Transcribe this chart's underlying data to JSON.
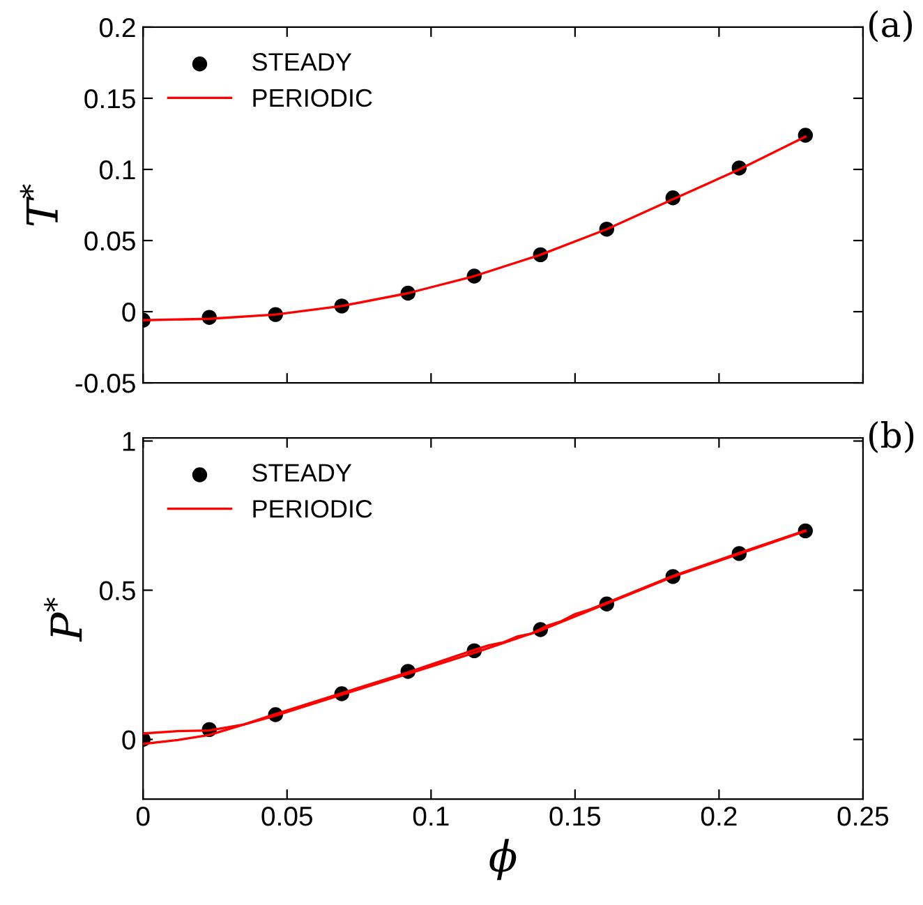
{
  "chart_data": [
    {
      "type": "line",
      "ylabel": "T$^{*}$",
      "annotations": [
        "(a)"
      ],
      "xlim": [
        0,
        0.25
      ],
      "xticks": [
        0,
        0.05,
        0.1,
        0.15,
        0.2,
        0.25
      ],
      "ylim": [
        -0.05,
        0.2
      ],
      "yticks": [
        -0.05,
        0,
        0.05,
        0.1,
        0.15,
        0.2
      ],
      "tick_labels": "y",
      "grid": false,
      "legend": "top left",
      "series": [
        {
          "name": "STEADY",
          "type": "scatter",
          "color": "#000000",
          "marker": "circle",
          "x": [
            0,
            0.023,
            0.046,
            0.069,
            0.092,
            0.115,
            0.138,
            0.161,
            0.184,
            0.207,
            0.23
          ],
          "values": [
            -0.006,
            -0.004,
            -0.002,
            0.004,
            0.013,
            0.025,
            0.04,
            0.058,
            0.08,
            0.101,
            0.124
          ]
        },
        {
          "name": "PERIODIC",
          "color": "#ff0000",
          "line_style": "solid",
          "x": [
            0,
            0.023,
            0.046,
            0.069,
            0.092,
            0.115,
            0.138,
            0.161,
            0.184,
            0.207,
            0.23
          ],
          "values": [
            -0.006,
            -0.005,
            -0.002,
            0.004,
            0.013,
            0.025,
            0.04,
            0.058,
            0.079,
            0.1,
            0.123
          ]
        }
      ]
    },
    {
      "type": "line",
      "ylabel": "P$^{*}$",
      "xlabel": "ϕ",
      "annotations": [
        "(b)"
      ],
      "xlim": [
        0,
        0.25
      ],
      "xticks": [
        0,
        0.05,
        0.1,
        0.15,
        0.2,
        0.25
      ],
      "ylim": [
        -0.2,
        1.01
      ],
      "yticks": [
        0,
        0.5,
        1
      ],
      "grid": false,
      "legend": "top left",
      "series": [
        {
          "name": "STEADY",
          "type": "scatter",
          "color": "#000000",
          "marker": "circle",
          "x": [
            0,
            0.023,
            0.046,
            0.069,
            0.092,
            0.115,
            0.138,
            0.161,
            0.184,
            0.207,
            0.23
          ],
          "values": [
            0,
            0.033,
            0.083,
            0.153,
            0.228,
            0.297,
            0.368,
            0.454,
            0.546,
            0.623,
            0.699
          ]
        },
        {
          "name": "PERIODIC",
          "color": "#ff0000",
          "line_style": "solid",
          "x": [
            0,
            0.012,
            0.023,
            0.035,
            0.046,
            0.069,
            0.092,
            0.115,
            0.12,
            0.125,
            0.13,
            0.135,
            0.14,
            0.145,
            0.15,
            0.155,
            0.161,
            0.184,
            0.207,
            0.23
          ],
          "values": [
            0.02,
            0.028,
            0.03,
            0.05,
            0.085,
            0.155,
            0.225,
            0.3,
            0.315,
            0.325,
            0.345,
            0.355,
            0.38,
            0.395,
            0.42,
            0.435,
            0.458,
            0.548,
            0.625,
            0.7
          ]
        },
        {
          "color": "#ff0000",
          "line_style": "solid",
          "x": [
            0,
            0.012,
            0.023,
            0.035,
            0.046,
            0.069,
            0.092,
            0.115,
            0.138,
            0.161,
            0.184,
            0.207,
            0.23
          ],
          "values": [
            -0.015,
            -0.002,
            0.015,
            0.05,
            0.08,
            0.15,
            0.22,
            0.29,
            0.365,
            0.455,
            0.545,
            0.622,
            0.698
          ]
        }
      ]
    }
  ]
}
